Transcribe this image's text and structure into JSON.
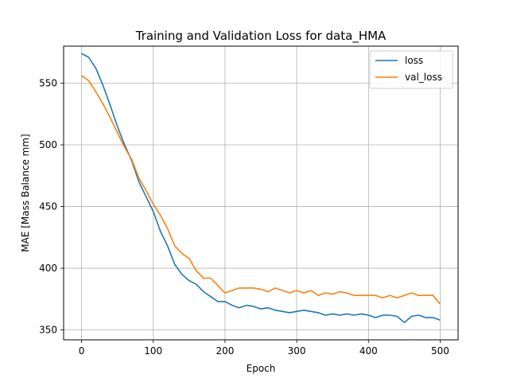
{
  "chart_data": {
    "type": "line",
    "title": "Training and Validation Loss for data_HMA",
    "xlabel": "Epoch",
    "ylabel": "MAE [Mass Balance mm]",
    "xlim": [
      -25,
      525
    ],
    "ylim": [
      342,
      580
    ],
    "xticks": [
      0,
      100,
      200,
      300,
      400,
      500
    ],
    "yticks": [
      350,
      400,
      450,
      500,
      550
    ],
    "grid": true,
    "legend_position": "top-right",
    "series": [
      {
        "name": "loss",
        "color": "#1f77b4",
        "x": [
          0,
          10,
          20,
          30,
          40,
          50,
          60,
          70,
          80,
          90,
          100,
          110,
          120,
          130,
          140,
          150,
          160,
          170,
          180,
          190,
          200,
          210,
          220,
          230,
          240,
          250,
          260,
          270,
          280,
          290,
          300,
          310,
          320,
          330,
          340,
          350,
          360,
          370,
          380,
          390,
          400,
          410,
          420,
          430,
          440,
          450,
          460,
          470,
          480,
          490,
          500
        ],
        "values": [
          574,
          571,
          562,
          548,
          532,
          515,
          500,
          487,
          470,
          458,
          446,
          430,
          418,
          403,
          395,
          390,
          387,
          381,
          377,
          373,
          373,
          370,
          368,
          370,
          369,
          367,
          368,
          366,
          365,
          364,
          365,
          366,
          365,
          364,
          362,
          363,
          362,
          363,
          362,
          363,
          362,
          360,
          362,
          362,
          361,
          356,
          361,
          362,
          360,
          360,
          358
        ]
      },
      {
        "name": "val_loss",
        "color": "#ff7f0e",
        "x": [
          0,
          10,
          20,
          30,
          40,
          50,
          60,
          70,
          80,
          90,
          100,
          110,
          120,
          130,
          140,
          150,
          160,
          170,
          180,
          190,
          200,
          210,
          220,
          230,
          240,
          250,
          260,
          270,
          280,
          290,
          300,
          310,
          320,
          330,
          340,
          350,
          360,
          370,
          380,
          390,
          400,
          410,
          420,
          430,
          440,
          450,
          460,
          470,
          480,
          490,
          500
        ],
        "values": [
          556,
          552,
          543,
          533,
          522,
          510,
          498,
          488,
          473,
          463,
          452,
          443,
          432,
          418,
          412,
          408,
          398,
          392,
          392,
          386,
          380,
          382,
          384,
          384,
          384,
          383,
          381,
          384,
          382,
          380,
          382,
          380,
          382,
          378,
          380,
          379,
          381,
          380,
          378,
          378,
          378,
          378,
          376,
          378,
          376,
          378,
          380,
          378,
          378,
          378,
          371
        ]
      }
    ]
  }
}
